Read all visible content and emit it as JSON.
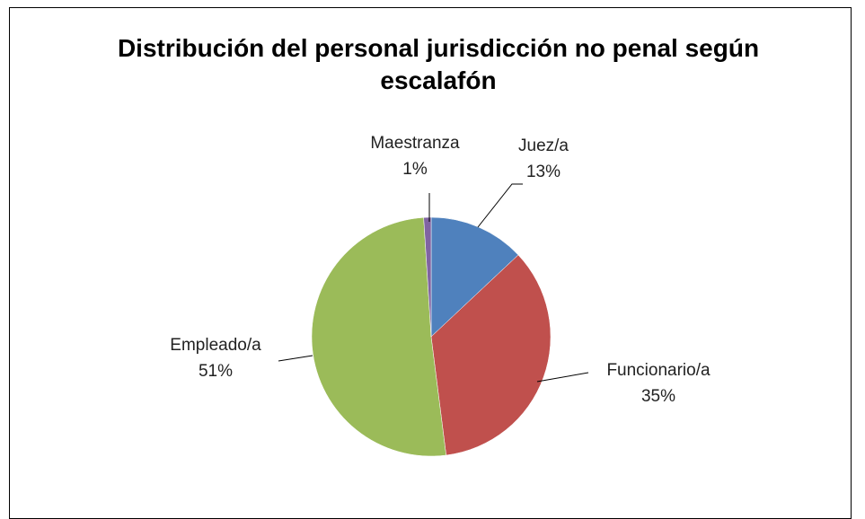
{
  "chart_data": {
    "type": "pie",
    "title": "Distribución del personal jurisdicción no penal según escalafón",
    "categories": [
      "Juez/a",
      "Funcionario/a",
      "Empleado/a",
      "Maestranza"
    ],
    "values": [
      13,
      35,
      51,
      1
    ],
    "value_labels": [
      "13%",
      "35%",
      "51%",
      "1%"
    ],
    "colors": [
      "#4f81bd",
      "#c0504d",
      "#9bbb59",
      "#8064a2"
    ]
  }
}
